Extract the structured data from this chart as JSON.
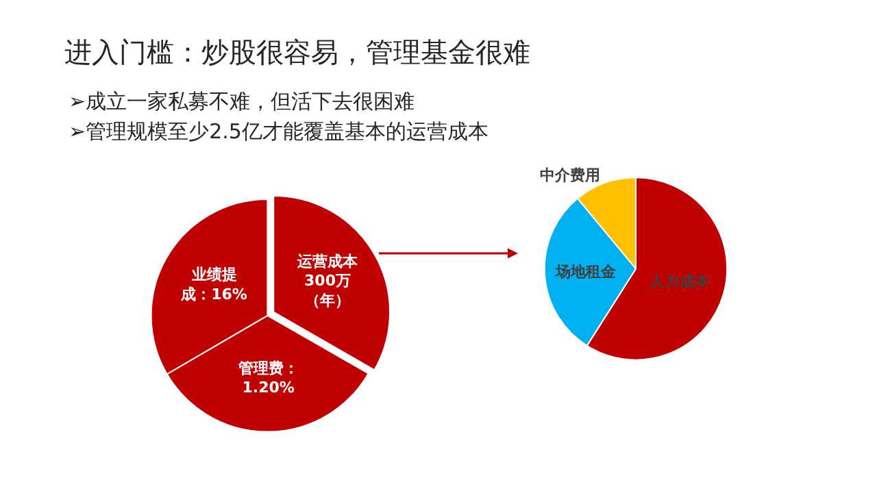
{
  "chart_data": [
    {
      "type": "pie",
      "title": "进入门槛：炒股很容易，管理基金很难",
      "annotations": [
        "➢成立一家私募不难，但活下去很困难",
        "➢管理规模至少2.5亿才能覆盖基本的运营成本"
      ],
      "categories": [
        "运营成本300万（年）",
        "管理费：1.20%",
        "业绩提成：16%"
      ],
      "values": [
        33.3,
        33.3,
        33.4
      ],
      "colors": [
        "#c00000",
        "#c00000",
        "#c00000"
      ]
    },
    {
      "type": "pie",
      "categories": [
        "人力成本",
        "场地租金",
        "中介费用"
      ],
      "values": [
        59,
        30,
        11
      ],
      "colors": [
        "#c00000",
        "#00b0f0",
        "#ffc000"
      ]
    }
  ]
}
